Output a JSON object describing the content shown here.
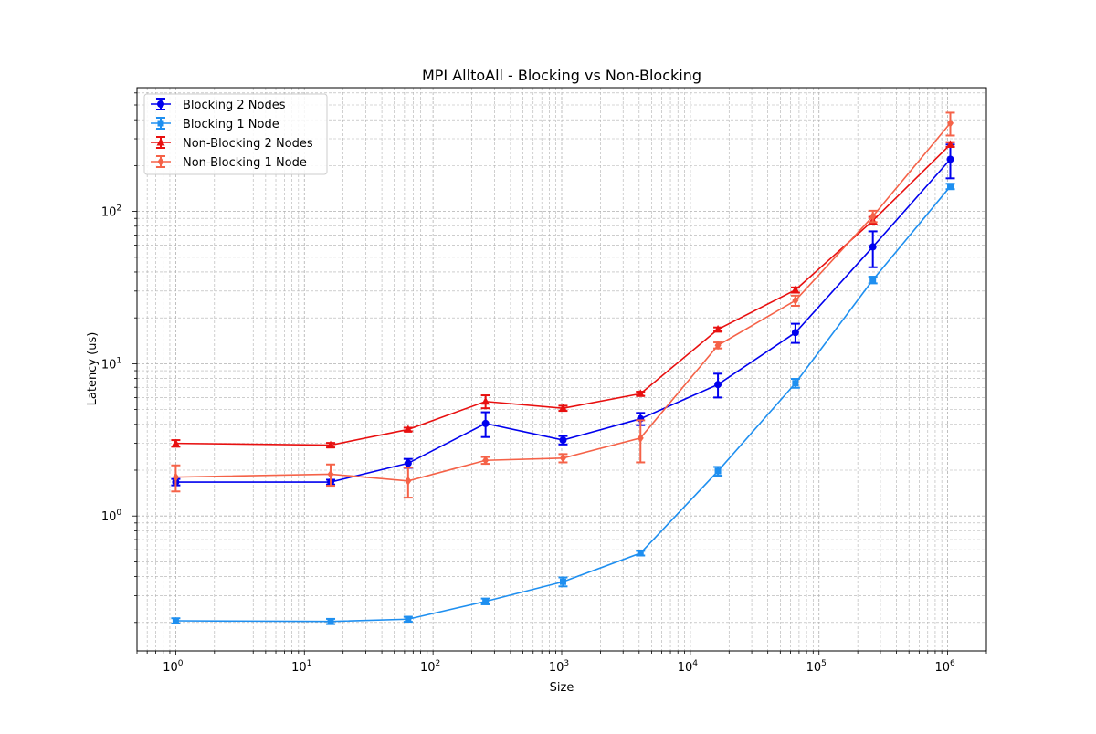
{
  "chart_data": {
    "type": "line",
    "title": "MPI AlltoAll - Blocking vs Non-Blocking",
    "xlabel": "Size",
    "ylabel": "Latency (us)",
    "xscale": "log",
    "yscale": "log",
    "xlim": [
      0.5,
      2000000
    ],
    "ylim": [
      0.13,
      650
    ],
    "x_ticks": [
      {
        "value": 1,
        "base": "10",
        "exp": "0"
      },
      {
        "value": 10,
        "base": "10",
        "exp": "1"
      },
      {
        "value": 100,
        "base": "10",
        "exp": "2"
      },
      {
        "value": 1000,
        "base": "10",
        "exp": "3"
      },
      {
        "value": 10000,
        "base": "10",
        "exp": "4"
      },
      {
        "value": 100000,
        "base": "10",
        "exp": "5"
      },
      {
        "value": 1000000,
        "base": "10",
        "exp": "6"
      }
    ],
    "y_ticks": [
      {
        "value": 1,
        "base": "10",
        "exp": "0"
      },
      {
        "value": 10,
        "base": "10",
        "exp": "1"
      },
      {
        "value": 100,
        "base": "10",
        "exp": "2"
      }
    ],
    "grid": true,
    "legend_position": "top-left",
    "x": [
      1,
      16,
      64,
      256,
      1024,
      4096,
      16384,
      65536,
      262144,
      1048576
    ],
    "series": [
      {
        "name": "Blocking 2 Nodes",
        "color": "#0000ee",
        "marker": "circle",
        "values": [
          1.67,
          1.67,
          2.22,
          4.05,
          3.15,
          4.35,
          7.3,
          16.0,
          58.5,
          220
        ],
        "errors": [
          0.08,
          0.06,
          0.15,
          0.75,
          0.2,
          0.4,
          1.3,
          2.3,
          15.5,
          55
        ]
      },
      {
        "name": "Blocking 1 Node",
        "color": "#1e8ff0",
        "marker": "square",
        "values": [
          0.205,
          0.203,
          0.21,
          0.275,
          0.37,
          0.57,
          1.97,
          7.45,
          35.5,
          146
        ],
        "errors": [
          0.008,
          0.008,
          0.008,
          0.012,
          0.025,
          0.02,
          0.13,
          0.5,
          1.8,
          6
        ]
      },
      {
        "name": "Non-Blocking 2 Nodes",
        "color": "#e81010",
        "marker": "triangle",
        "values": [
          3.0,
          2.92,
          3.7,
          5.65,
          5.1,
          6.35,
          16.8,
          30.5,
          87,
          275
        ],
        "errors": [
          0.15,
          0.1,
          0.1,
          0.55,
          0.2,
          0.2,
          0.5,
          1.2,
          5,
          10
        ]
      },
      {
        "name": "Non-Blocking 1 Node",
        "color": "#f56248",
        "marker": "diamond",
        "values": [
          1.8,
          1.88,
          1.7,
          2.32,
          2.4,
          3.25,
          13.2,
          26.0,
          93,
          380
        ],
        "errors": [
          0.35,
          0.3,
          0.38,
          0.12,
          0.15,
          1.0,
          0.6,
          2.0,
          8,
          65
        ]
      }
    ]
  }
}
